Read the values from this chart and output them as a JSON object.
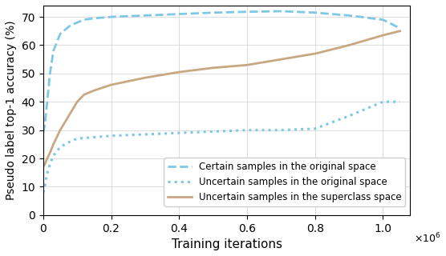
{
  "title": "",
  "xlabel": "Training iterations",
  "ylabel": "Pseudo label top-1 accuracy (%)",
  "xlim": [
    0,
    1080000.0
  ],
  "ylim": [
    0,
    74
  ],
  "yticks": [
    0,
    10,
    20,
    30,
    40,
    50,
    60,
    70
  ],
  "xticks": [
    0,
    200000,
    400000,
    600000,
    800000,
    1000000
  ],
  "xtick_labels": [
    "0",
    "0.2",
    "0.4",
    "0.6",
    "0.8",
    "1.0"
  ],
  "grid": true,
  "line_certain_original": {
    "label": "Certain samples in the original space",
    "color": "#7ec8e3",
    "linestyle": "dashed",
    "linewidth": 2.0,
    "x": [
      0,
      5000,
      10000,
      20000,
      30000,
      50000,
      80000,
      100000,
      120000,
      150000,
      200000,
      300000,
      400000,
      500000,
      600000,
      700000,
      800000,
      900000,
      1000000,
      1050000
    ],
    "y": [
      29,
      32,
      38,
      50,
      58,
      64,
      67,
      68,
      69,
      69.5,
      70,
      70.5,
      71,
      71.5,
      71.8,
      72,
      71.5,
      70.5,
      69,
      66
    ]
  },
  "line_uncertain_original": {
    "label": "Uncertain samples in the original space",
    "color": "#7ec8e3",
    "linestyle": "dotted",
    "linewidth": 2.2,
    "x": [
      0,
      5000,
      10000,
      20000,
      30000,
      50000,
      80000,
      100000,
      150000,
      200000,
      300000,
      400000,
      500000,
      600000,
      700000,
      800000,
      900000,
      1000000,
      1050000
    ],
    "y": [
      8,
      10,
      14,
      18,
      21,
      24,
      26,
      27,
      27.5,
      28,
      28.5,
      29,
      29.5,
      30,
      30,
      30.5,
      35,
      40,
      40
    ]
  },
  "line_uncertain_super": {
    "label": "Uncertain samples in the superclass space",
    "color": "#c8a882",
    "linestyle": "solid",
    "linewidth": 2.0,
    "x": [
      0,
      5000,
      10000,
      20000,
      30000,
      50000,
      80000,
      100000,
      120000,
      150000,
      200000,
      300000,
      400000,
      500000,
      600000,
      700000,
      800000,
      900000,
      1000000,
      1050000
    ],
    "y": [
      17,
      18,
      19.5,
      22,
      25,
      30,
      36,
      40,
      42.5,
      44,
      46,
      48.5,
      50.5,
      52,
      53,
      55,
      57,
      60,
      63.5,
      65
    ]
  },
  "figsize": [
    5.56,
    3.2
  ],
  "dpi": 100,
  "background_color": "#ffffff"
}
